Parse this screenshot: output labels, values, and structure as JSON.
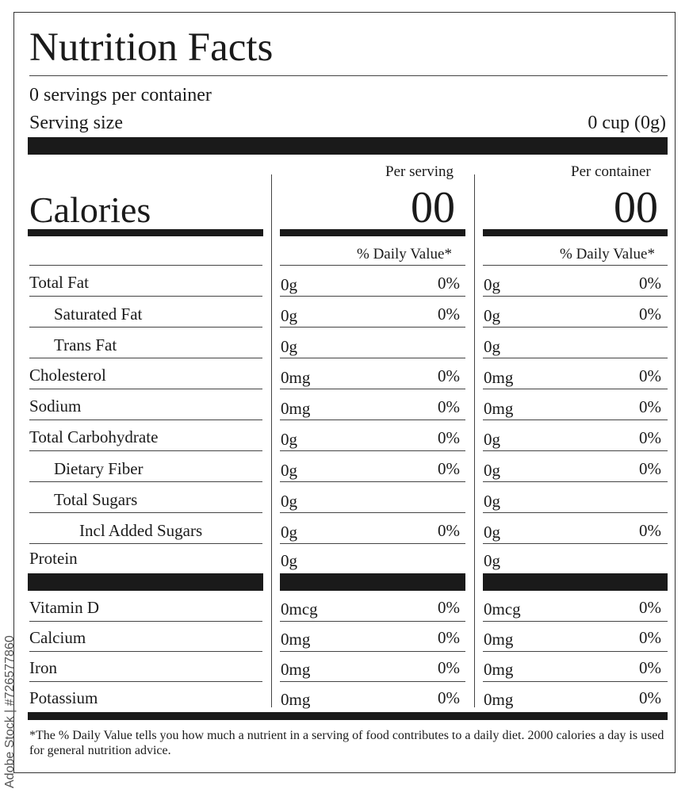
{
  "label": {
    "title": "Nutrition Facts",
    "servings_per_container": "0 servings per container",
    "serving_size_label": "Serving size",
    "serving_size_value": "0 cup (0g)",
    "calories_label": "Calories",
    "per_serving_label": "Per serving",
    "per_container_label": "Per container",
    "calories_per_serving": "00",
    "calories_per_container": "00",
    "daily_value_header": "% Daily Value*",
    "nutrients": [
      {
        "name": "Total Fat",
        "serving_amount": "0g",
        "serving_dv": "0%",
        "container_amount": "0g",
        "container_dv": "0%"
      },
      {
        "name": "Saturated Fat",
        "serving_amount": "0g",
        "serving_dv": "0%",
        "container_amount": "0g",
        "container_dv": "0%"
      },
      {
        "name": "Trans Fat",
        "serving_amount": "0g",
        "serving_dv": "",
        "container_amount": "0g",
        "container_dv": ""
      },
      {
        "name": "Cholesterol",
        "serving_amount": "0mg",
        "serving_dv": "0%",
        "container_amount": "0mg",
        "container_dv": "0%"
      },
      {
        "name": "Sodium",
        "serving_amount": "0mg",
        "serving_dv": "0%",
        "container_amount": "0mg",
        "container_dv": "0%"
      },
      {
        "name": "Total Carbohydrate",
        "serving_amount": "0g",
        "serving_dv": "0%",
        "container_amount": "0g",
        "container_dv": "0%"
      },
      {
        "name": "Dietary Fiber",
        "serving_amount": "0g",
        "serving_dv": "0%",
        "container_amount": "0g",
        "container_dv": "0%"
      },
      {
        "name": "Total Sugars",
        "serving_amount": "0g",
        "serving_dv": "",
        "container_amount": "0g",
        "container_dv": ""
      },
      {
        "name": "Incl Added Sugars",
        "serving_amount": "0g",
        "serving_dv": "0%",
        "container_amount": "0g",
        "container_dv": "0%"
      },
      {
        "name": "Protein",
        "serving_amount": "0g",
        "serving_dv": "",
        "container_amount": "0g",
        "container_dv": ""
      }
    ],
    "vitamins": [
      {
        "name": "Vitamin D",
        "serving_amount": "0mcg",
        "serving_dv": "0%",
        "container_amount": "0mcg",
        "container_dv": "0%"
      },
      {
        "name": "Calcium",
        "serving_amount": "0mg",
        "serving_dv": "0%",
        "container_amount": "0mg",
        "container_dv": "0%"
      },
      {
        "name": "Iron",
        "serving_amount": "0mg",
        "serving_dv": "0%",
        "container_amount": "0mg",
        "container_dv": "0%"
      },
      {
        "name": "Potassium",
        "serving_amount": "0mg",
        "serving_dv": "0%",
        "container_amount": "0mg",
        "container_dv": "0%"
      }
    ],
    "footnote": "*The % Daily Value tells you how much a nutrient in a serving of food contributes to a daily diet. 2000 calories a day is used for general nutrition advice."
  },
  "watermark": "Adobe Stock | #726577860",
  "colors": {
    "ink": "#1a1a1a",
    "background": "#ffffff"
  }
}
